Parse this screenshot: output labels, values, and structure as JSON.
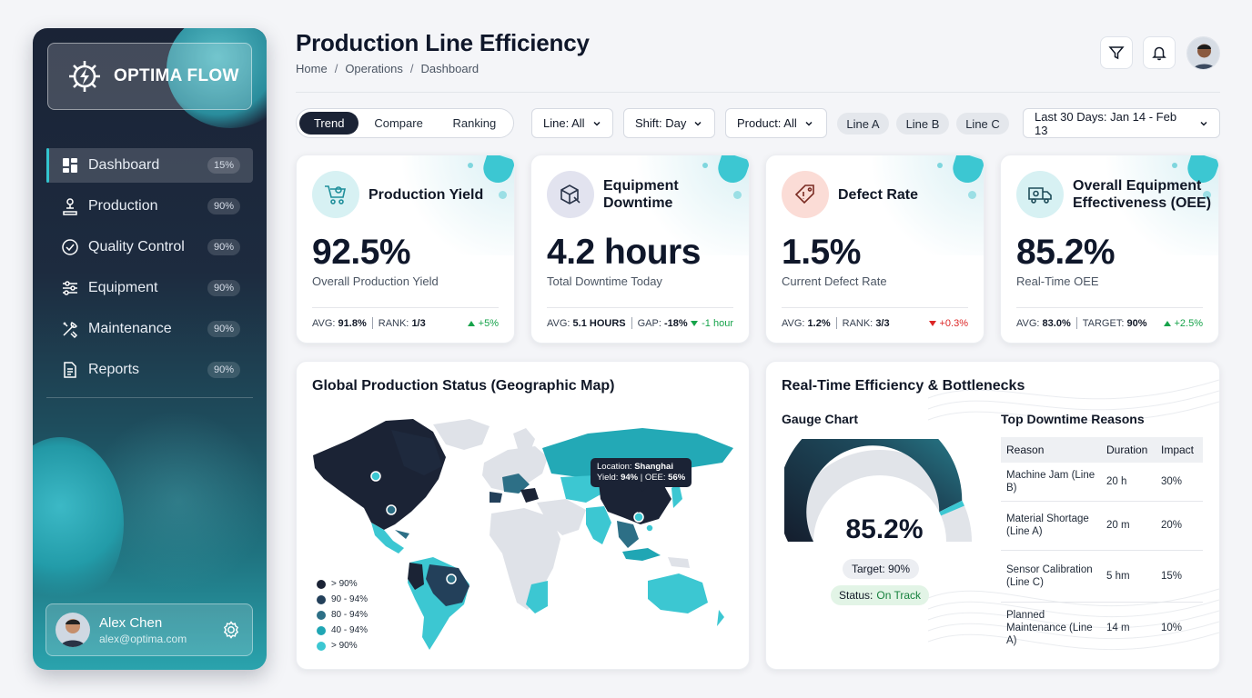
{
  "app": {
    "name": "OPTIMA FLOW"
  },
  "sidebar": {
    "items": [
      {
        "label": "Dashboard",
        "badge": "15%",
        "icon": "grid-icon"
      },
      {
        "label": "Production",
        "badge": "90%",
        "icon": "conveyor-icon"
      },
      {
        "label": "Quality Control",
        "badge": "90%",
        "icon": "check-circle-icon"
      },
      {
        "label": "Equipment",
        "badge": "90%",
        "icon": "sliders-icon"
      },
      {
        "label": "Maintenance",
        "badge": "90%",
        "icon": "tools-icon"
      },
      {
        "label": "Reports",
        "badge": "90%",
        "icon": "document-icon"
      }
    ],
    "user": {
      "name": "Alex Chen",
      "email": "alex@optima.com"
    }
  },
  "header": {
    "title": "Production Line Efficiency",
    "breadcrumb": [
      "Home",
      "Operations",
      "Dashboard"
    ],
    "separator": "/"
  },
  "filters": {
    "view_tabs": [
      "Trend",
      "Compare",
      "Ranking"
    ],
    "line": "Line: All",
    "shift": "Shift: Day",
    "product": "Product: All",
    "line_chips": [
      "Line A",
      "Line B",
      "Line C"
    ],
    "date_range": "Last 30 Days: Jan 14 - Feb 13"
  },
  "kpis": [
    {
      "title": "Production Yield",
      "value": "92.5%",
      "subtitle": "Overall Production Yield",
      "m1_label": "AVG:",
      "m1_value": "91.8%",
      "m2_label": "RANK:",
      "m2_value": "1/3",
      "delta": "+5%",
      "icon": "cart-gear-icon"
    },
    {
      "title": "Equipment Downtime",
      "value": "4.2 hours",
      "subtitle": "Total Downtime Today",
      "m1_label": "AVG:",
      "m1_value": "5.1 HOURS",
      "m2_label": "GAP:",
      "m2_value": "-18%",
      "delta": "-1 hour",
      "icon": "box-wrench-icon"
    },
    {
      "title": "Defect Rate",
      "value": "1.5%",
      "subtitle": "Current Defect Rate",
      "m1_label": "AVG:",
      "m1_value": "1.2%",
      "m2_label": "RANK:",
      "m2_value": "3/3",
      "delta": "+0.3%",
      "icon": "tag-alert-icon"
    },
    {
      "title": "Overall Equipment Effectiveness (OEE)",
      "value": "85.2%",
      "subtitle": "Real-Time OEE",
      "m1_label": "AVG:",
      "m1_value": "83.0%",
      "m2_label": "TARGET:",
      "m2_value": "90%",
      "delta": "+2.5%",
      "icon": "truck-gear-icon"
    }
  ],
  "map_panel": {
    "title": "Global Production Status (Geographic Map)",
    "tooltip": {
      "loc_label": "Location:",
      "loc_value": "Shanghai",
      "yield_label": "Yield:",
      "yield_value": "94%",
      "oee_label": "OEE:",
      "oee_value": "56%"
    },
    "legend": [
      {
        "label": "> 90%",
        "color": "#1b2335"
      },
      {
        "label": "90 - 94%",
        "color": "#23405a"
      },
      {
        "label": "80 - 94%",
        "color": "#2d6f86"
      },
      {
        "label": "40 - 94%",
        "color": "#20a6b4"
      },
      {
        "label": "> 90%",
        "color": "#3cc7d2"
      }
    ]
  },
  "efficiency_panel": {
    "title": "Real-Time Efficiency & Bottlenecks",
    "gauge": {
      "title": "Gauge Chart",
      "value": "85.2%",
      "level": 0.852,
      "target": "Target: 90%",
      "status_label": "Status:",
      "status_value": "On Track"
    },
    "table": {
      "title": "Top Downtime Reasons",
      "columns": [
        "Reason",
        "Duration",
        "Impact"
      ],
      "rows": [
        {
          "reason": "Machine Jam (Line B)",
          "duration": "20 h",
          "impact": "30%"
        },
        {
          "reason": "Material Shortage (Line A)",
          "duration": "20 m",
          "impact": "20%"
        },
        {
          "reason": "Sensor Calibration (Line C)",
          "duration": "5 hm",
          "impact": "15%"
        },
        {
          "reason": "Planned Maintenance (Line A)",
          "duration": "14 m",
          "impact": "10%"
        }
      ]
    }
  },
  "colors": {
    "accent": "#3cc7d2",
    "navy": "#1b2335",
    "positive": "#16a34a",
    "negative": "#dc2626"
  }
}
